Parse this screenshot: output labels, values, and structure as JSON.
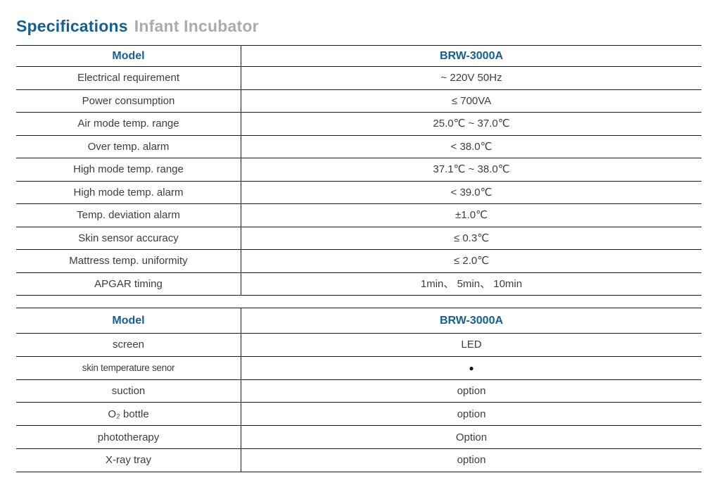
{
  "page": {
    "title": "Specifications",
    "subtitle": "Infant Incubator"
  },
  "colors": {
    "accent_blue": "#155f92",
    "subtitle_gray": "#ababab",
    "body_text": "#3d3d3d",
    "table_border": "#1a1a1a"
  },
  "tables": [
    {
      "header": {
        "col1": "Model",
        "col2": "BRW-3000A"
      },
      "rows": [
        {
          "label": "Electrical requirement",
          "value": "~  220V 50Hz"
        },
        {
          "label": "Power consumption",
          "value": "≤ 700VA"
        },
        {
          "label": "Air mode temp. range",
          "value": "25.0℃ ~  37.0℃"
        },
        {
          "label": "Over temp. alarm",
          "value": "< 38.0℃"
        },
        {
          "label": "High mode temp. range",
          "value": "37.1℃ ~  38.0℃"
        },
        {
          "label": "High mode temp. alarm",
          "value": "< 39.0℃"
        },
        {
          "label": "Temp. deviation alarm",
          "value": "±1.0℃"
        },
        {
          "label": "Skin sensor accuracy",
          "value": "≤ 0.3℃"
        },
        {
          "label": "Mattress temp. uniformity",
          "value": "≤ 2.0℃"
        },
        {
          "label": "APGAR timing",
          "value": "1min、 5min、 10min"
        }
      ]
    },
    {
      "header": {
        "col1": "Model",
        "col2": "BRW-3000A"
      },
      "rows": [
        {
          "label": "screen",
          "value": "LED"
        },
        {
          "label": "skin temperature senor",
          "value": "●"
        },
        {
          "label": "suction",
          "value": "option"
        },
        {
          "label": "O₂ bottle",
          "value": "option"
        },
        {
          "label": "phototherapy",
          "value": "Option"
        },
        {
          "label": "X-ray tray",
          "value": "option"
        }
      ]
    }
  ]
}
